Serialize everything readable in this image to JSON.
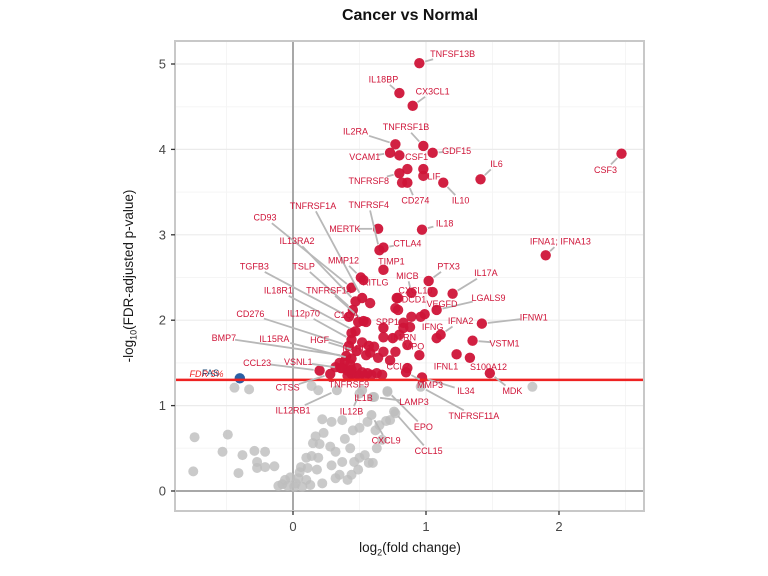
{
  "chart_data": {
    "type": "scatter",
    "subtype": "volcano",
    "title": "Cancer vs Normal",
    "xlabel": "log2(fold change)",
    "ylabel": "-log10(FDR-adjusted p-value)",
    "xlabel_parts": {
      "pre": "log",
      "sub": "2",
      "post": "(fold change)"
    },
    "ylabel_parts": {
      "pre": "-log",
      "sub": "10",
      "post": "(FDR-adjusted p-value)"
    },
    "xlim": [
      -0.89,
      2.64
    ],
    "ylim": [
      -0.23,
      5.27
    ],
    "x_ticks": [
      0,
      1,
      2
    ],
    "y_ticks": [
      0,
      1,
      2,
      3,
      4,
      5
    ],
    "x_minor_ticks": [
      -0.5,
      0.5,
      1.5,
      2.5
    ],
    "y_minor_ticks": [
      0.5,
      1.5,
      2.5,
      3.5,
      4.5
    ],
    "grid": true,
    "threshold_line": {
      "y": 1.301,
      "label": "FDR 5%",
      "label_x": -0.65,
      "label_y": 1.37
    },
    "reference_lines": {
      "vline_x": 0,
      "hline_y": 0
    },
    "special_point": {
      "gene": "FAS",
      "x": -0.4,
      "y": 1.32,
      "label_x": -0.62,
      "label_y": 1.38
    },
    "colors": {
      "significant": "#cf1438",
      "label_text": "#cf1438",
      "not_significant": "#bdbdbd",
      "special": "#2b5fa5",
      "special_label": "#1f4e79",
      "threshold_line": "#ee2222",
      "leader_line": "#b8b8b8",
      "grid_major": "#ebebeb",
      "grid_minor": "#f5f5f5",
      "reference_line": "#a8a8a8",
      "panel_border": "#c8c8c8",
      "tick_text": "#474747",
      "axis_tick": "#333333"
    },
    "significant_points": [
      {
        "g": "TNFSF13B",
        "x": 0.95,
        "y": 5.01,
        "lx": 1.2,
        "ly": 5.12
      },
      {
        "g": "IL18BP",
        "x": 0.8,
        "y": 4.66,
        "lx": 0.68,
        "ly": 4.82
      },
      {
        "g": "CX3CL1",
        "x": 0.9,
        "y": 4.51,
        "lx": 1.05,
        "ly": 4.68
      },
      {
        "g": "IL2RA",
        "x": 0.77,
        "y": 4.06,
        "lx": 0.47,
        "ly": 4.21
      },
      {
        "g": "TNFRSF1B",
        "x": 0.98,
        "y": 4.04,
        "lx": 0.85,
        "ly": 4.26
      },
      {
        "g": "GDF15",
        "x": 1.05,
        "y": 3.96,
        "lx": 1.23,
        "ly": 3.98
      },
      {
        "g": "VCAM1",
        "x": 0.73,
        "y": 3.96,
        "lx": 0.54,
        "ly": 3.91
      },
      {
        "g": "CSF1",
        "x": 0.8,
        "y": 3.93,
        "lx": 0.93,
        "ly": 3.91
      },
      {
        "g": "CSF3",
        "x": 2.47,
        "y": 3.95,
        "lx": 2.35,
        "ly": 3.76
      },
      {
        "g": "IL6",
        "x": 1.41,
        "y": 3.65,
        "lx": 1.53,
        "ly": 3.83
      },
      {
        "g": "LIF",
        "x": 0.98,
        "y": 3.77,
        "lx": 1.06,
        "ly": 3.68
      },
      {
        "g": "TNFRSF8",
        "x": 0.8,
        "y": 3.72,
        "lx": 0.57,
        "ly": 3.63
      },
      {
        "g": "CD274",
        "x": 0.86,
        "y": 3.61,
        "lx": 0.92,
        "ly": 3.4
      },
      {
        "g": "IL10",
        "x": 1.13,
        "y": 3.61,
        "lx": 1.26,
        "ly": 3.4
      },
      {
        "g": "IL18",
        "x": 0.97,
        "y": 3.06,
        "lx": 1.14,
        "ly": 3.13
      },
      {
        "g": "MERTK",
        "x": 0.64,
        "y": 3.07,
        "lx": 0.39,
        "ly": 3.07
      },
      {
        "g": "TNFRSF1A",
        "x": 0.52,
        "y": 2.26,
        "lx": 0.15,
        "ly": 3.34
      },
      {
        "g": "TNFRSF4",
        "x": 0.65,
        "y": 2.82,
        "lx": 0.57,
        "ly": 3.35
      },
      {
        "g": "CD93",
        "x": 0.44,
        "y": 2.38,
        "lx": -0.21,
        "ly": 3.2
      },
      {
        "g": "IL13RA2",
        "x": 0.47,
        "y": 2.22,
        "lx": 0.03,
        "ly": 2.93
      },
      {
        "g": "CTLA4",
        "x": 0.68,
        "y": 2.85,
        "lx": 0.86,
        "ly": 2.9
      },
      {
        "g": "TIMP1",
        "x": 0.68,
        "y": 2.59,
        "lx": 0.74,
        "ly": 2.69
      },
      {
        "g": "MMP12",
        "x": 0.51,
        "y": 2.5,
        "lx": 0.38,
        "ly": 2.7
      },
      {
        "g": "TGFB3",
        "x": 0.42,
        "y": 2.04,
        "lx": -0.29,
        "ly": 2.63
      },
      {
        "g": "TSLP",
        "x": 0.45,
        "y": 2.12,
        "lx": 0.08,
        "ly": 2.63
      },
      {
        "g": "PTX3",
        "x": 1.02,
        "y": 2.46,
        "lx": 1.17,
        "ly": 2.63
      },
      {
        "g": "MICB",
        "x": 0.89,
        "y": 2.32,
        "lx": 0.86,
        "ly": 2.52
      },
      {
        "g": "IL17A",
        "x": 1.2,
        "y": 2.31,
        "lx": 1.45,
        "ly": 2.55
      },
      {
        "g": "IL18R1",
        "x": 0.47,
        "y": 1.87,
        "lx": -0.11,
        "ly": 2.35
      },
      {
        "g": "TNFRSF14",
        "x": 0.53,
        "y": 1.99,
        "lx": 0.27,
        "ly": 2.35
      },
      {
        "g": "KITLG",
        "x": 0.53,
        "y": 2.47,
        "lx": 0.62,
        "ly": 2.44
      },
      {
        "g": "CXCL10",
        "x": 1.05,
        "y": 2.33,
        "lx": 0.92,
        "ly": 2.35
      },
      {
        "g": "DCD1",
        "x": 0.78,
        "y": 2.26,
        "lx": 0.91,
        "ly": 2.24
      },
      {
        "g": "VEGFD",
        "x": 0.99,
        "y": 2.07,
        "lx": 1.12,
        "ly": 2.19
      },
      {
        "g": "LGALS9",
        "x": 1.08,
        "y": 2.12,
        "lx": 1.47,
        "ly": 2.26
      },
      {
        "g": "IL12p70",
        "x": 0.44,
        "y": 1.77,
        "lx": 0.08,
        "ly": 2.08
      },
      {
        "g": "C1QA",
        "x": 0.49,
        "y": 1.98,
        "lx": 0.4,
        "ly": 2.06
      },
      {
        "g": "SPP1",
        "x": 0.68,
        "y": 1.91,
        "lx": 0.71,
        "ly": 1.98
      },
      {
        "g": "IFNA2",
        "x": 1.11,
        "y": 1.83,
        "lx": 1.26,
        "ly": 1.99
      },
      {
        "g": "IFNG",
        "x": 1.08,
        "y": 1.79,
        "lx": 1.05,
        "ly": 1.92
      },
      {
        "g": "IFNW1",
        "x": 1.42,
        "y": 1.96,
        "lx": 1.81,
        "ly": 2.03
      },
      {
        "g": "IFNA1; IFNA13",
        "x": 1.9,
        "y": 2.76,
        "lx": 2.01,
        "ly": 2.92
      },
      {
        "g": "CD276",
        "x": 0.42,
        "y": 1.7,
        "lx": -0.32,
        "ly": 2.07
      },
      {
        "g": "BMP7",
        "x": 0.4,
        "y": 1.58,
        "lx": -0.52,
        "ly": 1.79
      },
      {
        "g": "IL15RA",
        "x": 0.44,
        "y": 1.55,
        "lx": -0.14,
        "ly": 1.78
      },
      {
        "g": "HGF",
        "x": 0.48,
        "y": 1.64,
        "lx": 0.2,
        "ly": 1.77
      },
      {
        "g": "IL1RL1",
        "x": 0.57,
        "y": 1.7,
        "lx": 0.48,
        "ly": 1.67
      },
      {
        "g": "IL1RN",
        "x": 0.75,
        "y": 1.79,
        "lx": 0.83,
        "ly": 1.8
      },
      {
        "g": "MPO",
        "x": 0.95,
        "y": 1.59,
        "lx": 0.91,
        "ly": 1.69
      },
      {
        "g": "VSTM1",
        "x": 1.35,
        "y": 1.76,
        "lx": 1.59,
        "ly": 1.73
      },
      {
        "g": "CCL23",
        "x": 0.2,
        "y": 1.41,
        "lx": -0.27,
        "ly": 1.5
      },
      {
        "g": "VSNL1",
        "x": 0.36,
        "y": 1.44,
        "lx": 0.04,
        "ly": 1.51
      },
      {
        "g": "CCL2",
        "x": 0.86,
        "y": 1.44,
        "lx": 0.79,
        "ly": 1.46
      },
      {
        "g": "IFNL1",
        "x": 1.23,
        "y": 1.6,
        "lx": 1.15,
        "ly": 1.46
      },
      {
        "g": "S100A12",
        "x": 1.33,
        "y": 1.56,
        "lx": 1.47,
        "ly": 1.45
      },
      {
        "g": "CTSS",
        "x": 0.28,
        "y": 1.37,
        "lx": -0.04,
        "ly": 1.21
      },
      {
        "g": "TNFRSF9",
        "x": 0.44,
        "y": 1.42,
        "lx": 0.42,
        "ly": 1.25
      },
      {
        "g": "MMP3",
        "x": 0.85,
        "y": 1.39,
        "lx": 1.03,
        "ly": 1.24
      },
      {
        "g": "IL34",
        "x": 0.97,
        "y": 1.33,
        "lx": 1.3,
        "ly": 1.17
      },
      {
        "g": "MDK",
        "x": 1.48,
        "y": 1.38,
        "lx": 1.65,
        "ly": 1.17
      }
    ],
    "labeled_ns_points": [
      {
        "g": "IL1B",
        "x": 0.52,
        "y": 1.18,
        "lx": 0.53,
        "ly": 1.09
      },
      {
        "g": "IL12RB1",
        "x": 0.33,
        "y": 1.18,
        "lx": 0.0,
        "ly": 0.94
      },
      {
        "g": "IL12B",
        "x": 0.5,
        "y": 1.14,
        "lx": 0.44,
        "ly": 0.93
      },
      {
        "g": "LAMP3",
        "x": 0.61,
        "y": 1.1,
        "lx": 0.91,
        "ly": 1.04
      },
      {
        "g": "TNFRSF11A",
        "x": 0.96,
        "y": 1.22,
        "lx": 1.36,
        "ly": 0.88
      },
      {
        "g": "EPO",
        "x": 0.71,
        "y": 1.17,
        "lx": 0.98,
        "ly": 0.75
      },
      {
        "g": "CXCL9",
        "x": 0.59,
        "y": 0.89,
        "lx": 0.7,
        "ly": 0.59
      },
      {
        "g": "CCL15",
        "x": 0.76,
        "y": 0.93,
        "lx": 1.02,
        "ly": 0.47
      }
    ],
    "extra_significant_points": [
      [
        0.58,
        2.2
      ],
      [
        0.79,
        2.12
      ],
      [
        0.83,
        1.91
      ],
      [
        0.88,
        1.92
      ],
      [
        0.68,
        1.8
      ],
      [
        0.44,
        1.85
      ],
      [
        0.55,
        1.98
      ],
      [
        0.83,
        1.97
      ],
      [
        0.89,
        2.04
      ],
      [
        0.96,
        2.04
      ],
      [
        0.77,
        2.14
      ],
      [
        0.68,
        1.63
      ],
      [
        0.58,
        1.62
      ],
      [
        0.39,
        1.52
      ],
      [
        0.43,
        1.48
      ],
      [
        0.37,
        1.44
      ],
      [
        0.41,
        1.41
      ],
      [
        0.44,
        1.37
      ],
      [
        0.48,
        1.44
      ],
      [
        0.52,
        1.39
      ],
      [
        0.35,
        1.5
      ],
      [
        0.32,
        1.45
      ],
      [
        0.47,
        1.35
      ],
      [
        0.5,
        1.35
      ],
      [
        0.41,
        1.35
      ],
      [
        0.56,
        1.38
      ],
      [
        0.59,
        1.36
      ],
      [
        0.54,
        1.35
      ],
      [
        0.63,
        1.38
      ],
      [
        0.67,
        1.36
      ],
      [
        0.79,
        2.26
      ],
      [
        0.86,
        3.77
      ],
      [
        0.52,
        1.74
      ],
      [
        0.61,
        1.69
      ],
      [
        0.55,
        1.59
      ],
      [
        0.64,
        1.56
      ],
      [
        0.73,
        1.53
      ],
      [
        0.77,
        1.63
      ],
      [
        0.86,
        1.71
      ],
      [
        0.8,
        1.83
      ],
      [
        0.82,
        3.61
      ],
      [
        0.98,
        3.69
      ]
    ],
    "ns_points": [
      [
        -0.44,
        1.21
      ],
      [
        -0.33,
        1.19
      ],
      [
        -0.74,
        0.63
      ],
      [
        -0.49,
        0.66
      ],
      [
        -0.53,
        0.46
      ],
      [
        -0.38,
        0.42
      ],
      [
        -0.29,
        0.47
      ],
      [
        -0.21,
        0.46
      ],
      [
        -0.75,
        0.23
      ],
      [
        -0.41,
        0.21
      ],
      [
        -0.27,
        0.34
      ],
      [
        -0.27,
        0.27
      ],
      [
        -0.21,
        0.28
      ],
      [
        -0.14,
        0.29
      ],
      [
        0.14,
        1.23
      ],
      [
        0.19,
        1.18
      ],
      [
        0.22,
        0.84
      ],
      [
        0.29,
        0.81
      ],
      [
        0.37,
        0.83
      ],
      [
        0.45,
        0.71
      ],
      [
        0.5,
        0.74
      ],
      [
        0.56,
        0.81
      ],
      [
        0.17,
        0.64
      ],
      [
        0.23,
        0.68
      ],
      [
        0.15,
        0.56
      ],
      [
        0.2,
        0.55
      ],
      [
        0.39,
        0.61
      ],
      [
        0.43,
        0.5
      ],
      [
        0.5,
        0.39
      ],
      [
        0.46,
        0.34
      ],
      [
        0.57,
        0.33
      ],
      [
        0.1,
        0.39
      ],
      [
        0.14,
        0.41
      ],
      [
        0.19,
        0.39
      ],
      [
        0.06,
        0.28
      ],
      [
        0.11,
        0.27
      ],
      [
        0.18,
        0.25
      ],
      [
        -0.02,
        0.16
      ],
      [
        0.04,
        0.15
      ],
      [
        0.1,
        0.13
      ],
      [
        -0.08,
        0.08
      ],
      [
        -0.04,
        0.06
      ],
      [
        0.01,
        0.05
      ],
      [
        0.22,
        0.09
      ],
      [
        0.29,
        0.3
      ],
      [
        0.44,
        0.19
      ],
      [
        0.6,
        0.33
      ],
      [
        1.8,
        1.22
      ],
      [
        0.6,
        1.1
      ],
      [
        0.71,
        1.16
      ],
      [
        0.7,
        0.82
      ],
      [
        0.77,
        0.91
      ],
      [
        0.73,
        0.83
      ],
      [
        0.35,
        0.19
      ],
      [
        0.41,
        0.13
      ],
      [
        0.13,
        0.07
      ],
      [
        0.05,
        0.22
      ],
      [
        0.32,
        0.15
      ],
      [
        0.49,
        0.25
      ],
      [
        0.54,
        0.42
      ],
      [
        0.63,
        0.5
      ],
      [
        0.67,
        0.6
      ],
      [
        0.28,
        0.52
      ],
      [
        0.32,
        0.46
      ],
      [
        0.37,
        0.34
      ],
      [
        0.62,
        0.71
      ],
      [
        0.65,
        0.77
      ],
      [
        -0.06,
        0.13
      ],
      [
        -0.11,
        0.06
      ],
      [
        0.02,
        0.09
      ],
      [
        0.07,
        0.05
      ]
    ]
  }
}
